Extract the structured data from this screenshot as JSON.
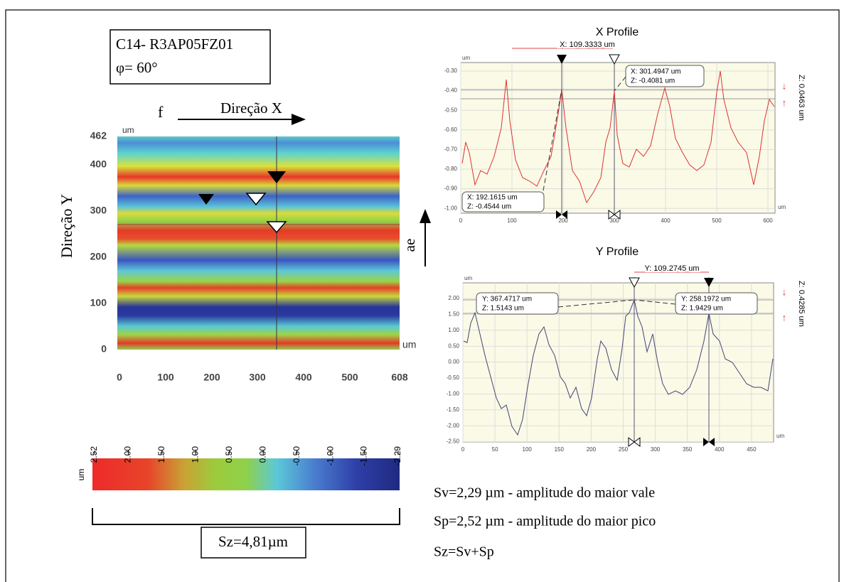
{
  "figure": {
    "sample": "C14- R3AP05FZ01",
    "angle": "φ= 60°",
    "feed": "f",
    "x_direction": "Direção X",
    "y_direction": "Direção Y",
    "unit_top": "um",
    "unit_right": "um",
    "map_yticks": [
      "462",
      "400",
      "300",
      "200",
      "100",
      "0"
    ],
    "map_xticks": [
      "0",
      "100",
      "200",
      "300",
      "400",
      "500",
      "608"
    ],
    "colorbar_ticks": [
      "2.52",
      "2.00",
      "1.50",
      "1.00",
      "0.50",
      "0.00",
      "-0.50",
      "-1.00",
      "-1.50",
      "-2.29"
    ],
    "colorbar_unit": "um",
    "sz_box": "Sz=4,81µm",
    "ae": "ae"
  },
  "x_profile": {
    "title": "X Profile",
    "distance": "X: 109.3333 um",
    "unit_y": "um",
    "unit_x": "um",
    "yticks": [
      "-0.30",
      "-0.40",
      "-0.50",
      "-0.60",
      "-0.70",
      "-0.80",
      "-0.90",
      "-1.00"
    ],
    "xticks": [
      "0",
      "100",
      "200",
      "300",
      "400",
      "500",
      "600"
    ],
    "cursor_right": [
      "X: 301.4947 um",
      "Z: -0.4081 um"
    ],
    "cursor_left": [
      "X: 192.1615 um",
      "Z: -0.4544 um"
    ],
    "z_range": "Z: 0.0463 um"
  },
  "y_profile": {
    "title": "Y Profile",
    "distance": "Y: 109.2745 um",
    "unit_y": "um",
    "unit_x": "um",
    "yticks": [
      "2.00",
      "1.50",
      "1.00",
      "0.50",
      "0.00",
      "-0.50",
      "-1.00",
      "-1.50",
      "-2.00",
      "-2.50"
    ],
    "xticks": [
      "0",
      "50",
      "100",
      "150",
      "200",
      "250",
      "300",
      "350",
      "400",
      "450"
    ],
    "cursor_left": [
      "Y: 367.4717 um",
      "Z: 1.5143 um"
    ],
    "cursor_right": [
      "Y: 258.1972 um",
      "Z: 1.9429 um"
    ],
    "z_range": "Z: 0.4285 um"
  },
  "notes": [
    "Sv=2,29 µm - amplitude do maior vale",
    "Sp=2,52 µm - amplitude do maior pico",
    "Sz=Sv+Sp"
  ]
}
